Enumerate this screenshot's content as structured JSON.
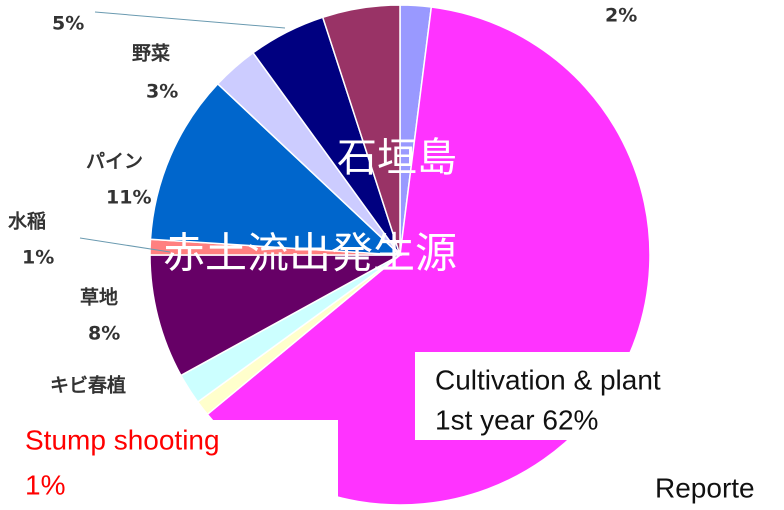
{
  "chart_data": {
    "type": "pie",
    "categories": [
      null,
      "Cultivation & plant",
      "Stump shooting",
      "キビ春植",
      "草地",
      "水稲",
      "パイン",
      "野菜",
      null,
      null
    ],
    "values": [
      2,
      62,
      1,
      2,
      8,
      1,
      11,
      3,
      5,
      5
    ],
    "value_labels": [
      "2%",
      "1st year 62%",
      "1%",
      null,
      "8%",
      "1%",
      "11%",
      "3%",
      "5%",
      null
    ],
    "colors": [
      "#9999ff",
      "#ff33ff",
      "#ffffcc",
      "#ccffff",
      "#660066",
      "#ff8080",
      "#0066cc",
      "#ccccff",
      "#000080",
      "#993366"
    ],
    "annotations": [
      "石垣島",
      "赤土流出発生源",
      "Reporte"
    ]
  }
}
